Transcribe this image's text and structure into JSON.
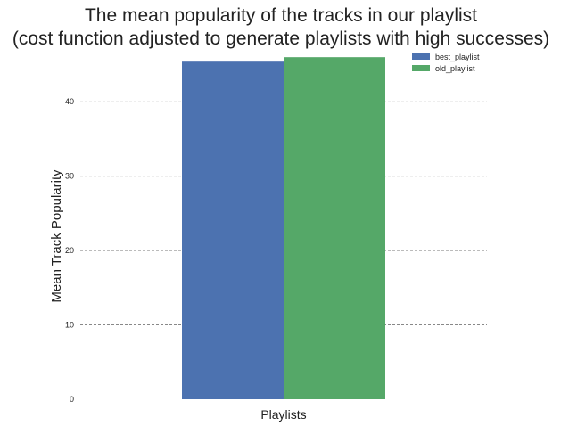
{
  "chart_data": {
    "type": "bar",
    "title_line1": "The mean popularity of the tracks in our playlist",
    "title_line2": "(cost function adjusted to generate playlists with high successes)",
    "xlabel": "Playlists",
    "ylabel": "Mean Track Popularity",
    "categories": [
      ""
    ],
    "series": [
      {
        "name": "best_playlist",
        "values": [
          45.4
        ],
        "color": "#4c72b0"
      },
      {
        "name": "old_playlist",
        "values": [
          46.0
        ],
        "color": "#55a868"
      }
    ],
    "yticks": [
      0,
      10,
      20,
      30,
      40
    ],
    "ytick_labels": [
      "0",
      "10",
      "20",
      "30",
      "40"
    ],
    "ylim": [
      0,
      46.5
    ],
    "grid": "horizontal-dashed",
    "legend_position": "top-right"
  }
}
